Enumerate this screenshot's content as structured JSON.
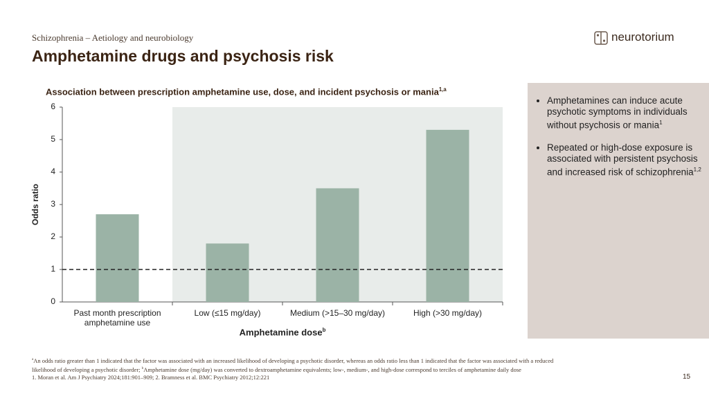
{
  "header": {
    "section": "Schizophrenia – Aetiology and neurobiology",
    "title": "Amphetamine drugs and psychosis risk",
    "logo": "neurotorium"
  },
  "chart_data": {
    "type": "bar",
    "title": "Association between prescription amphetamine use, dose, and incident psychosis or mania",
    "title_superscript": "1,a",
    "categories": [
      "Past month prescription amphetamine use",
      "Low (≤15 mg/day)",
      "Medium (>15–30 mg/day)",
      "High (>30 mg/day)"
    ],
    "values": [
      2.7,
      1.8,
      3.5,
      5.3
    ],
    "color": "#9bb3a6",
    "y_label": "Odds ratio",
    "x_label": "Amphetamine dose",
    "x_label_superscript": "b",
    "ylim": [
      0,
      6
    ],
    "yticks": [
      0,
      1,
      2,
      3,
      4,
      5,
      6
    ],
    "reference_line": 1
  },
  "bullets": [
    {
      "text": "Amphetamines can induce acute psychotic symptoms in individuals without psychosis or mania",
      "sup": "1"
    },
    {
      "text": "Repeated or high-dose exposure is associated with persistent psychosis and increased risk of schizophrenia",
      "sup": "1,2"
    }
  ],
  "footnotes": {
    "a_mark": "a",
    "a_text": "An odds ratio greater than 1 indicated that the factor was associated with an increased likelihood of developing a psychotic disorder, whereas an odds ratio less than 1 indicated that the factor was associated with a reduced likelihood of developing a psychotic disorder; ",
    "b_mark": "b",
    "b_text": "Amphetamine dose (mg/day) was converted to dextroamphetamine equivalents; low-, medium-, and high-dose correspond to terciles of amphetamine daily dose",
    "references": "1. Moran et al. Am J Psychiatry 2024;181:901–909; 2. Bramness et al. BMC Psychiatry 2012;12:221"
  },
  "page_number": "15"
}
